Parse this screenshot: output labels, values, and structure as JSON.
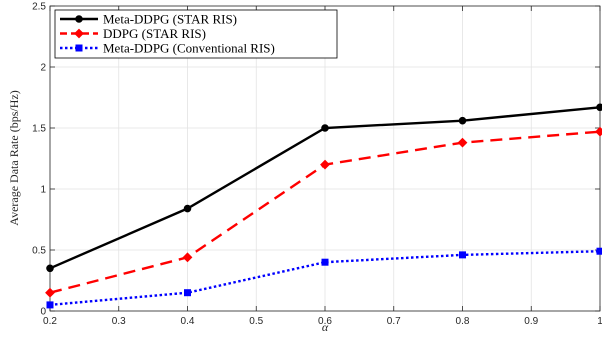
{
  "chart_data": {
    "type": "line",
    "xlabel": "α",
    "ylabel": "Average Data Rate (bps/Hz)",
    "xlim": [
      0.2,
      1.0
    ],
    "ylim": [
      0,
      2.5
    ],
    "x_ticks": [
      0.2,
      0.3,
      0.4,
      0.5,
      0.6,
      0.7,
      0.8,
      0.9,
      1.0
    ],
    "x_tick_labels": [
      "0.2",
      "0.3",
      "0.4",
      "0.5",
      "0.6",
      "0.7",
      "0.8",
      "0.9",
      "1"
    ],
    "y_ticks": [
      0,
      0.5,
      1,
      1.5,
      2,
      2.5
    ],
    "y_tick_labels": [
      "0",
      "0.5",
      "1",
      "1.5",
      "2",
      "2.5"
    ],
    "grid": true,
    "legend_position": "top-left",
    "series": [
      {
        "name": "Meta-DDPG (STAR RIS)",
        "color": "#000000",
        "line_style": "solid",
        "marker": "circle",
        "x": [
          0.2,
          0.4,
          0.6,
          0.8,
          1.0
        ],
        "values": [
          0.35,
          0.84,
          1.5,
          1.56,
          1.67
        ]
      },
      {
        "name": "DDPG (STAR RIS)",
        "color": "#ff0000",
        "line_style": "dashed",
        "marker": "diamond",
        "x": [
          0.2,
          0.4,
          0.6,
          0.8,
          1.0
        ],
        "values": [
          0.15,
          0.44,
          1.2,
          1.38,
          1.47
        ]
      },
      {
        "name": "Meta-DDPG (Conventional RIS)",
        "color": "#0000ff",
        "line_style": "dotted",
        "marker": "square",
        "x": [
          0.2,
          0.4,
          0.6,
          0.8,
          1.0
        ],
        "values": [
          0.05,
          0.15,
          0.4,
          0.46,
          0.49
        ]
      }
    ]
  }
}
